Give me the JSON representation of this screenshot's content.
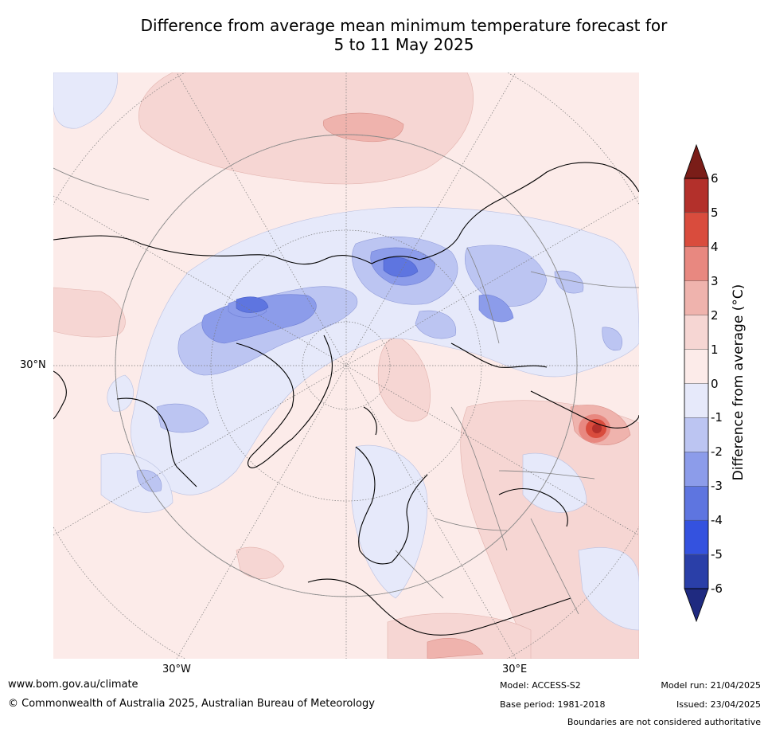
{
  "title_line1": "Difference from average mean minimum temperature forecast for",
  "title_line2": "5 to 11 May 2025",
  "map": {
    "projection": "north polar stereographic",
    "lat_label": "30°N",
    "lon_labels": [
      "30°W",
      "30°E"
    ],
    "land_outline_color": "#000000",
    "border_color": "#808080",
    "graticule_color": "#7a7a7a"
  },
  "colorbar": {
    "label": "Difference from average (°C)",
    "ticks": [
      "6",
      "5",
      "4",
      "3",
      "2",
      "1",
      "0",
      "-1",
      "-2",
      "-3",
      "-4",
      "-5",
      "-6"
    ],
    "bins": [
      {
        "range": [
          5,
          6
        ],
        "color": "#b3302b"
      },
      {
        "range": [
          4,
          5
        ],
        "color": "#d94c3d"
      },
      {
        "range": [
          3,
          4
        ],
        "color": "#e88880"
      },
      {
        "range": [
          2,
          3
        ],
        "color": "#efb3ad"
      },
      {
        "range": [
          1,
          2
        ],
        "color": "#f6d6d3"
      },
      {
        "range": [
          0,
          1
        ],
        "color": "#fcebe9"
      },
      {
        "range": [
          -1,
          0
        ],
        "color": "#e6e9fa"
      },
      {
        "range": [
          -2,
          -1
        ],
        "color": "#bcc5f2"
      },
      {
        "range": [
          -3,
          -2
        ],
        "color": "#8c9cea"
      },
      {
        "range": [
          -4,
          -3
        ],
        "color": "#5e75e0"
      },
      {
        "range": [
          -5,
          -4
        ],
        "color": "#3452df"
      },
      {
        "range": [
          -6,
          -5
        ],
        "color": "#2a3fa8"
      }
    ],
    "extend_max_color": "#7a1d18",
    "extend_min_color": "#1f2a80"
  },
  "footer": {
    "website": "www.bom.gov.au/climate",
    "copyright": "© Commonwealth of Australia 2025, Australian Bureau of Meteorology",
    "model": "Model: ACCESS-S2",
    "base_period": "Base period: 1981-2018",
    "model_run": "Model run: 21/04/2025",
    "issued": "Issued: 23/04/2025",
    "disclaimer": "Boundaries are not considered authoritative"
  }
}
